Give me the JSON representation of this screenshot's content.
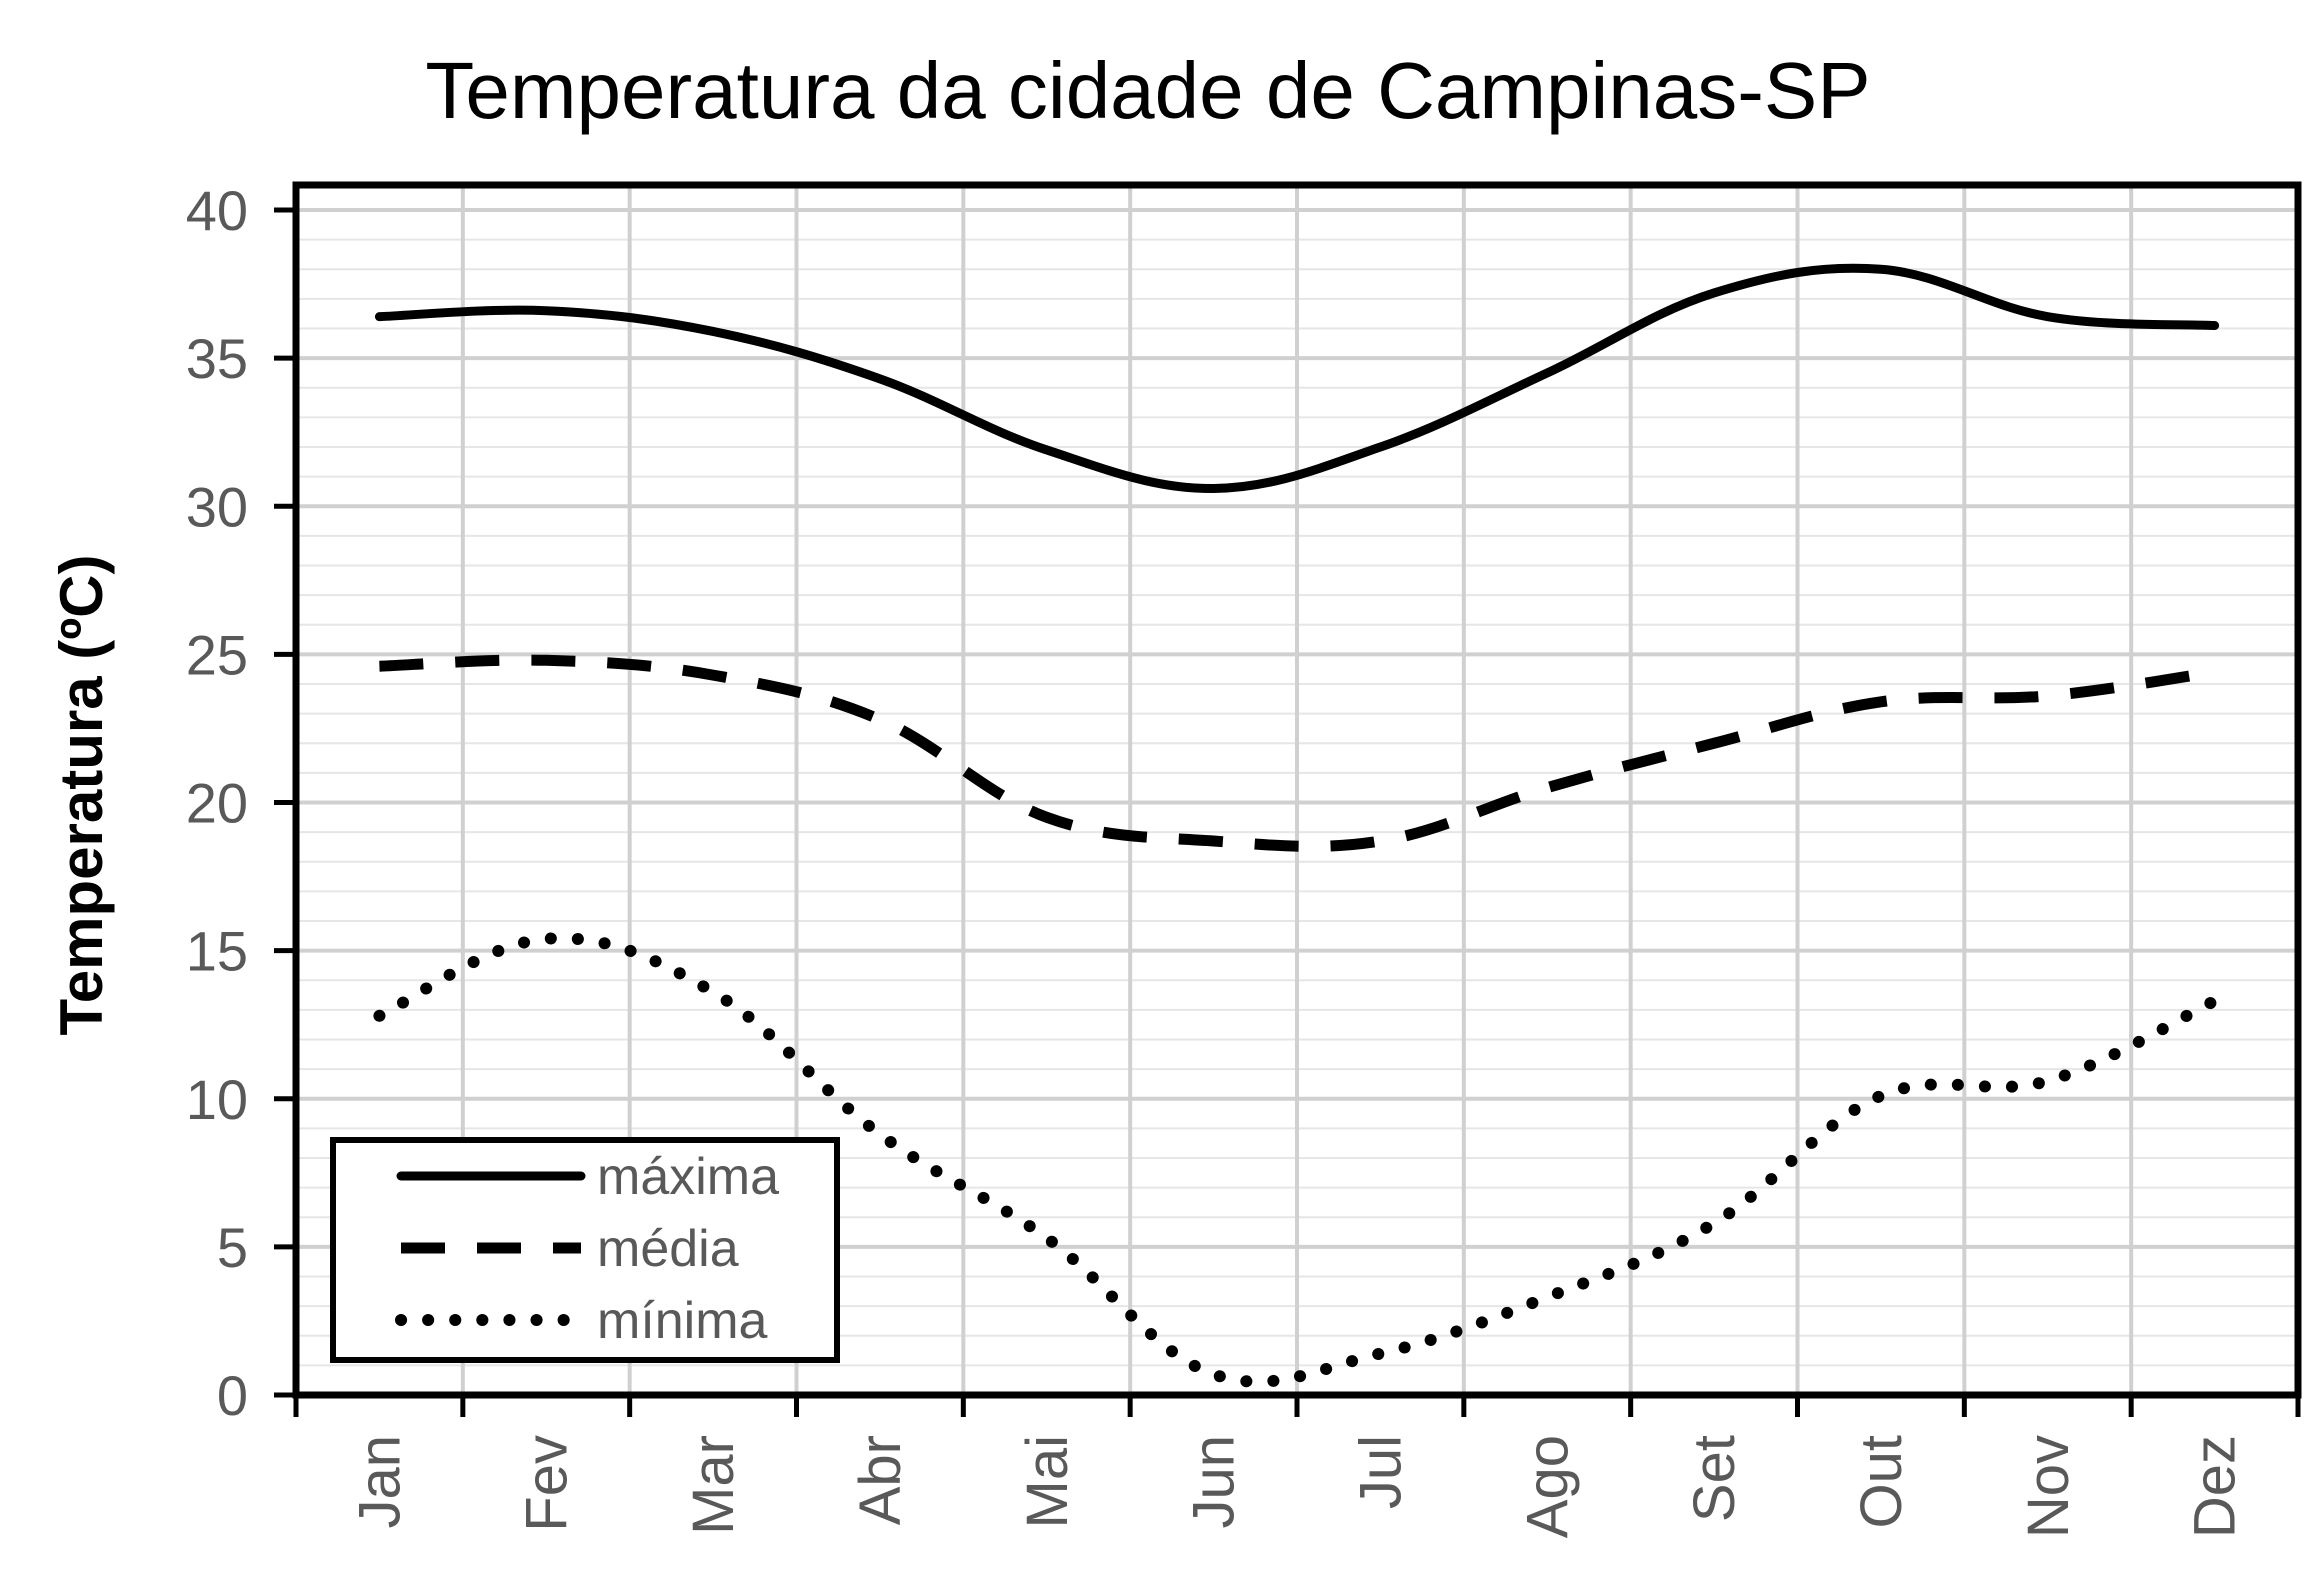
{
  "chart_data": {
    "type": "line",
    "title": "Temperatura da cidade de Campinas-SP",
    "xlabel": "",
    "ylabel": "Temperatura (ºC)",
    "categories": [
      "Jan",
      "Fev",
      "Mar",
      "Abr",
      "Mai",
      "Jun",
      "Jul",
      "Ago",
      "Set",
      "Out",
      "Nov",
      "Dez"
    ],
    "ylim": [
      0,
      40
    ],
    "yticks": [
      "0",
      "5",
      "10",
      "15",
      "20",
      "25",
      "30",
      "35",
      "40"
    ],
    "grid": true,
    "legend_position": "bottom-left",
    "series": [
      {
        "name": "máxima",
        "style": "solid",
        "values": [
          36.4,
          36.6,
          35.9,
          34.3,
          31.9,
          30.6,
          32.0,
          34.5,
          37.2,
          38.0,
          36.4,
          36.1
        ]
      },
      {
        "name": "média",
        "style": "dashed",
        "values": [
          24.6,
          24.8,
          24.3,
          22.8,
          19.5,
          18.7,
          18.7,
          20.5,
          22.0,
          23.4,
          23.6,
          24.4
        ]
      },
      {
        "name": "mínima",
        "style": "dotted",
        "values": [
          12.8,
          15.4,
          13.6,
          8.8,
          5.3,
          0.7,
          1.4,
          3.3,
          5.8,
          10.1,
          10.6,
          13.3
        ]
      }
    ]
  }
}
